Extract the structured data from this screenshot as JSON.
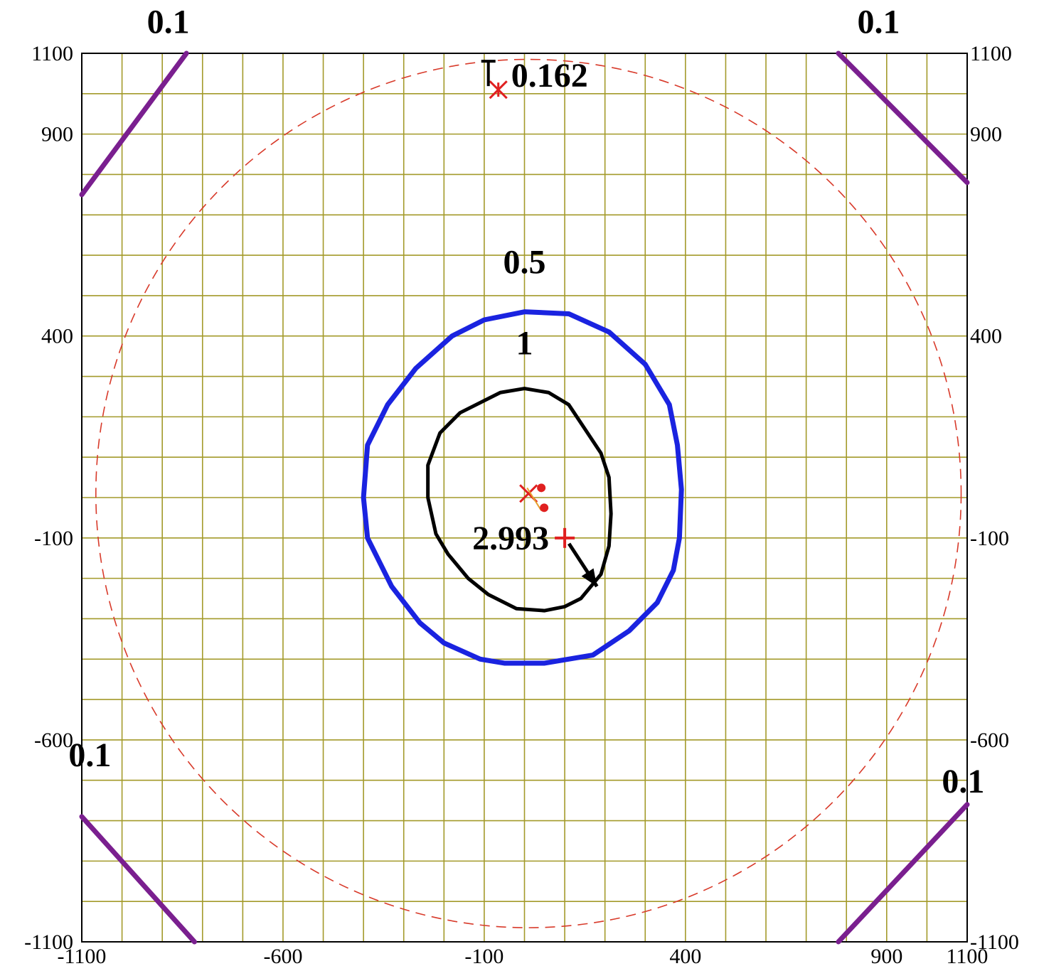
{
  "chart_data": {
    "type": "contour",
    "xlim": [
      -1100,
      1100
    ],
    "ylim": [
      -1100,
      1100
    ],
    "grid": true,
    "x_ticks_bottom": [
      "-1100",
      "-600",
      "-100",
      "400",
      "900",
      "1100"
    ],
    "y_ticks_left": [
      "1100",
      "900",
      "400",
      "-100",
      "-600",
      "-1100"
    ],
    "y_ticks_right": [
      "1100",
      "900",
      "400",
      "-100",
      "-600",
      "-1100"
    ],
    "tick_values": {
      "x": [
        -1100,
        -600,
        -100,
        400,
        900,
        1100
      ],
      "y": [
        1100,
        900,
        400,
        -100,
        -600,
        -1100
      ]
    },
    "colors": {
      "grid": "#a39a2a",
      "frame": "#000000",
      "contour_0_1": "#7a1f8f",
      "contour_0_5": "#1a23e0",
      "contour_1": "#000000",
      "dashed_circle": "#d83a2a",
      "markers": "#e02020"
    },
    "contours": [
      {
        "level": "0.1",
        "color": "#7a1f8f",
        "segments": [
          [
            [
              -1100,
              750
            ],
            [
              -840,
              1100
            ]
          ],
          [
            [
              780,
              1100
            ],
            [
              1100,
              780
            ]
          ],
          [
            [
              -1100,
              -790
            ],
            [
              -820,
              -1100
            ]
          ],
          [
            [
              780,
              -1100
            ],
            [
              1100,
              -760
            ]
          ]
        ]
      },
      {
        "level": "0.5",
        "color": "#1a23e0",
        "points": [
          [
            0,
            460
          ],
          [
            110,
            455
          ],
          [
            210,
            410
          ],
          [
            300,
            330
          ],
          [
            360,
            230
          ],
          [
            380,
            130
          ],
          [
            390,
            20
          ],
          [
            385,
            -100
          ],
          [
            370,
            -180
          ],
          [
            330,
            -260
          ],
          [
            260,
            -330
          ],
          [
            170,
            -390
          ],
          [
            50,
            -410
          ],
          [
            -50,
            -410
          ],
          [
            -110,
            -400
          ],
          [
            -200,
            -360
          ],
          [
            -260,
            -310
          ],
          [
            -330,
            -220
          ],
          [
            -390,
            -100
          ],
          [
            -400,
            0
          ],
          [
            -390,
            130
          ],
          [
            -340,
            230
          ],
          [
            -270,
            320
          ],
          [
            -180,
            400
          ],
          [
            -100,
            440
          ],
          [
            0,
            460
          ]
        ]
      },
      {
        "level": "1",
        "color": "#000000",
        "points": [
          [
            -60,
            260
          ],
          [
            0,
            270
          ],
          [
            60,
            260
          ],
          [
            110,
            230
          ],
          [
            150,
            170
          ],
          [
            190,
            110
          ],
          [
            210,
            50
          ],
          [
            215,
            -40
          ],
          [
            210,
            -120
          ],
          [
            190,
            -190
          ],
          [
            140,
            -250
          ],
          [
            100,
            -270
          ],
          [
            50,
            -280
          ],
          [
            -20,
            -275
          ],
          [
            -90,
            -240
          ],
          [
            -140,
            -200
          ],
          [
            -190,
            -140
          ],
          [
            -220,
            -90
          ],
          [
            -240,
            0
          ],
          [
            -240,
            80
          ],
          [
            -210,
            160
          ],
          [
            -160,
            210
          ],
          [
            -60,
            260
          ]
        ]
      }
    ],
    "dashed_circle": {
      "center": [
        10,
        10
      ],
      "radius": 1075
    },
    "markers": [
      {
        "label": "0.162",
        "x": -65,
        "y": 1010,
        "kind": "x-star"
      },
      {
        "label": "2.993",
        "x": 100,
        "y": -100,
        "kind": "plus"
      },
      {
        "label": "",
        "x": 10,
        "y": 10,
        "kind": "cluster"
      }
    ],
    "arrow": {
      "from": [
        100,
        -100
      ],
      "to": [
        180,
        -220
      ]
    },
    "contour_labels": [
      {
        "text": "0.1",
        "x": -885,
        "y": 1150
      },
      {
        "text": "0.1",
        "x": 880,
        "y": 1150
      },
      {
        "text": "0.1",
        "x": -1080,
        "y": -665
      },
      {
        "text": "0.1",
        "x": 1090,
        "y": -730
      },
      {
        "text": "0.5",
        "x": 0,
        "y": 555
      },
      {
        "text": "1",
        "x": 0,
        "y": 355
      }
    ]
  }
}
